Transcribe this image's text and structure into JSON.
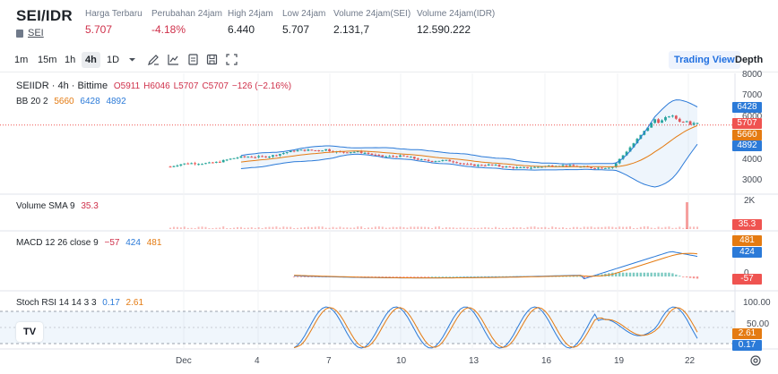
{
  "ticker": {
    "pair": "SEI/IDR",
    "asset_link": "SEI",
    "stats": [
      {
        "label": "Harga Terbaru",
        "value": "5.707",
        "tone": "red"
      },
      {
        "label": "Perubahan 24jam",
        "value": "-4.18%",
        "tone": "red"
      },
      {
        "label": "High 24jam",
        "value": "6.440",
        "tone": "normal"
      },
      {
        "label": "Low 24jam",
        "value": "5.707",
        "tone": "normal"
      },
      {
        "label": "Volume 24jam(SEI)",
        "value": "2.131,7",
        "tone": "normal"
      },
      {
        "label": "Volume 24jam(IDR)",
        "value": "12.590.222",
        "tone": "normal"
      }
    ]
  },
  "toolbar": {
    "intervals": [
      "1m",
      "15m",
      "1h",
      "4h",
      "1D"
    ],
    "active_interval": "4h",
    "icons": [
      "chevron-down-icon",
      "draw-icon",
      "indicator-icon",
      "layers-icon",
      "snapshot-icon",
      "fullscreen-icon"
    ],
    "views": [
      "Trading View",
      "Depth"
    ],
    "active_view": "Trading View"
  },
  "colors": {
    "up": "#26a69a",
    "down": "#ef5350",
    "bb_mid": "#e47b12",
    "bb_band": "#2b7ad8",
    "accent": "#1f6fe0"
  },
  "legends": {
    "main": {
      "symbol": "SEIIDR · 4h · Bittime",
      "o": "O5911",
      "h": "H6046",
      "l": "L5707",
      "c": "C5707",
      "chg": "−126 (−2.16%)"
    },
    "bb": {
      "name": "BB 20 2",
      "mid": "5660",
      "upper": "6428",
      "lower": "4892"
    },
    "volume": {
      "name": "Volume SMA 9",
      "value": "35.3"
    },
    "macd": {
      "name": "MACD 12 26 close 9",
      "hist": "−57",
      "macd": "424",
      "signal": "481"
    },
    "stoch": {
      "name": "Stoch RSI 14 14 3 3",
      "k": "0.17",
      "d": "2.61"
    }
  },
  "price_axis": {
    "ticks": [
      "8000",
      "7000",
      "6000",
      "5000",
      "4000",
      "3000"
    ],
    "tags": {
      "upper": "6428",
      "last": "5707",
      "mid": "5660",
      "lower": "4892"
    }
  },
  "volume_axis": {
    "ticks": [
      "2K"
    ],
    "tag": "35.3"
  },
  "macd_axis": {
    "tags": {
      "signal": "481",
      "macd": "424",
      "hist": "-57"
    },
    "zero": "0"
  },
  "stoch_axis": {
    "ticks": [
      "100.00",
      "50.00"
    ],
    "tags": {
      "d": "2.61",
      "k": "0.17"
    }
  },
  "time_axis": [
    "Dec",
    "4",
    "7",
    "10",
    "13",
    "16",
    "19",
    "22"
  ],
  "chart_data": {
    "type": "candlestick",
    "price": {
      "ylim": [
        2500,
        8200
      ],
      "last": 5707,
      "bb_upper": 6428,
      "bb_mid": 5660,
      "bb_lower": 4892
    },
    "macd": {
      "hist": -57,
      "macd": 424,
      "signal": 481
    },
    "stoch_rsi": {
      "k": 0.17,
      "d": 2.61,
      "upper_band": 80,
      "lower_band": 20
    },
    "volume_sma": 35.3
  }
}
